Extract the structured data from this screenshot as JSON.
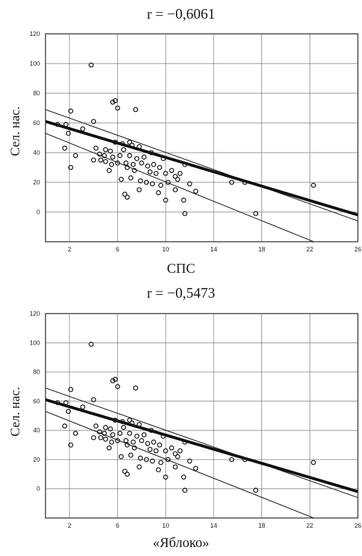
{
  "charts_text": {
    "top_title": "r = −0,6061",
    "top_xlabel": "СПС",
    "bottom_title": "r = −0,5473",
    "bottom_caption": "«Яблоко»"
  },
  "chart_data": [
    {
      "type": "scatter",
      "title": "r = −0,6061",
      "xlabel": "СПС",
      "ylabel": "Сел. нас.",
      "xlim": [
        0,
        26
      ],
      "ylim": [
        -20,
        120
      ],
      "xticks": [
        "2",
        "6",
        "10",
        "14",
        "18",
        "22",
        "26"
      ],
      "yticks": [
        "120",
        "100",
        "80",
        "60",
        "40",
        "20",
        "0"
      ],
      "grid": true,
      "regression": {
        "intercept": 61,
        "slope": -2.42
      },
      "confidence_band": {
        "upper": [
          [
            0,
            69
          ],
          [
            26,
            -6
          ]
        ],
        "lower": [
          [
            0,
            53
          ],
          [
            26,
            -32
          ]
        ]
      },
      "points": [
        [
          3.8,
          99
        ],
        [
          5.8,
          75
        ],
        [
          5.6,
          74
        ],
        [
          6,
          70
        ],
        [
          7.5,
          69
        ],
        [
          2.1,
          68
        ],
        [
          4,
          61
        ],
        [
          1,
          59
        ],
        [
          1.7,
          59
        ],
        [
          3.1,
          56
        ],
        [
          1.9,
          53
        ],
        [
          5.8,
          47
        ],
        [
          6.4,
          46
        ],
        [
          7,
          47
        ],
        [
          7.2,
          45
        ],
        [
          1.6,
          43
        ],
        [
          4.2,
          43
        ],
        [
          5,
          42
        ],
        [
          5.4,
          41
        ],
        [
          6.5,
          42
        ],
        [
          7.8,
          44
        ],
        [
          8.8,
          40
        ],
        [
          4.5,
          39
        ],
        [
          4.9,
          38
        ],
        [
          5.6,
          37
        ],
        [
          6.2,
          38
        ],
        [
          7,
          38
        ],
        [
          7.6,
          36
        ],
        [
          8.2,
          37
        ],
        [
          9.8,
          36
        ],
        [
          2.5,
          38
        ],
        [
          5,
          34
        ],
        [
          5.5,
          32
        ],
        [
          6,
          33
        ],
        [
          6.7,
          33
        ],
        [
          7.3,
          32
        ],
        [
          8,
          33
        ],
        [
          8.5,
          31
        ],
        [
          9,
          32
        ],
        [
          9.5,
          30
        ],
        [
          10.5,
          28
        ],
        [
          11.6,
          32
        ],
        [
          4,
          35
        ],
        [
          4.6,
          35
        ],
        [
          5.3,
          28
        ],
        [
          6.8,
          30
        ],
        [
          7.4,
          28
        ],
        [
          8.7,
          27
        ],
        [
          9.2,
          26
        ],
        [
          10,
          26
        ],
        [
          10.8,
          24
        ],
        [
          11.2,
          26
        ],
        [
          6.3,
          22
        ],
        [
          7.1,
          23
        ],
        [
          7.9,
          21
        ],
        [
          8.4,
          20
        ],
        [
          8.9,
          19
        ],
        [
          9.6,
          18
        ],
        [
          10.2,
          20
        ],
        [
          11,
          22
        ],
        [
          12,
          19
        ],
        [
          6.6,
          12
        ],
        [
          7.8,
          15
        ],
        [
          9.4,
          13
        ],
        [
          10.8,
          15
        ],
        [
          12.5,
          14
        ],
        [
          6.8,
          10
        ],
        [
          10,
          8
        ],
        [
          11.5,
          8
        ],
        [
          15.5,
          20
        ],
        [
          16.6,
          20
        ],
        [
          22.3,
          18
        ],
        [
          17.5,
          -1
        ],
        [
          11.6,
          -1
        ],
        [
          2.1,
          30
        ]
      ]
    },
    {
      "type": "scatter",
      "title": "r = −0,5473",
      "xlabel": "«Яблоко»",
      "ylabel": "Сел. нас.",
      "xlim": [
        0,
        26
      ],
      "ylim": [
        -20,
        120
      ],
      "xticks": [
        "2",
        "6",
        "10",
        "14",
        "18",
        "22",
        "26"
      ],
      "yticks": [
        "120",
        "100",
        "80",
        "60",
        "40",
        "20",
        "0"
      ],
      "grid": true,
      "regression": {
        "intercept": 61,
        "slope": -2.42
      },
      "confidence_band": {
        "upper": [
          [
            0,
            69
          ],
          [
            26,
            -6
          ]
        ],
        "lower": [
          [
            0,
            53
          ],
          [
            26,
            -32
          ]
        ]
      },
      "points": [
        [
          3.8,
          99
        ],
        [
          5.8,
          75
        ],
        [
          5.6,
          74
        ],
        [
          6,
          70
        ],
        [
          7.5,
          69
        ],
        [
          2.1,
          68
        ],
        [
          4,
          61
        ],
        [
          1,
          59
        ],
        [
          1.7,
          59
        ],
        [
          3.1,
          56
        ],
        [
          1.9,
          53
        ],
        [
          5.8,
          47
        ],
        [
          6.4,
          46
        ],
        [
          7,
          47
        ],
        [
          7.2,
          45
        ],
        [
          1.6,
          43
        ],
        [
          4.2,
          43
        ],
        [
          5,
          42
        ],
        [
          5.4,
          41
        ],
        [
          6.5,
          42
        ],
        [
          7.8,
          44
        ],
        [
          8.8,
          40
        ],
        [
          4.5,
          39
        ],
        [
          4.9,
          38
        ],
        [
          5.6,
          37
        ],
        [
          6.2,
          38
        ],
        [
          7,
          38
        ],
        [
          7.6,
          36
        ],
        [
          8.2,
          37
        ],
        [
          9.8,
          36
        ],
        [
          2.5,
          38
        ],
        [
          5,
          34
        ],
        [
          5.5,
          32
        ],
        [
          6,
          33
        ],
        [
          6.7,
          33
        ],
        [
          7.3,
          32
        ],
        [
          8,
          33
        ],
        [
          8.5,
          31
        ],
        [
          9,
          32
        ],
        [
          9.5,
          30
        ],
        [
          10.5,
          28
        ],
        [
          11.6,
          32
        ],
        [
          4,
          35
        ],
        [
          4.6,
          35
        ],
        [
          5.3,
          28
        ],
        [
          6.8,
          30
        ],
        [
          7.4,
          28
        ],
        [
          8.7,
          27
        ],
        [
          9.2,
          26
        ],
        [
          10,
          26
        ],
        [
          10.8,
          24
        ],
        [
          11.2,
          26
        ],
        [
          6.3,
          22
        ],
        [
          7.1,
          23
        ],
        [
          7.9,
          21
        ],
        [
          8.4,
          20
        ],
        [
          8.9,
          19
        ],
        [
          9.6,
          18
        ],
        [
          10.2,
          20
        ],
        [
          11,
          22
        ],
        [
          12,
          19
        ],
        [
          6.6,
          12
        ],
        [
          7.8,
          15
        ],
        [
          9.4,
          13
        ],
        [
          10.8,
          15
        ],
        [
          12.5,
          14
        ],
        [
          6.8,
          10
        ],
        [
          10,
          8
        ],
        [
          11.5,
          8
        ],
        [
          15.5,
          20
        ],
        [
          16.6,
          20
        ],
        [
          22.3,
          18
        ],
        [
          17.5,
          -1
        ],
        [
          11.6,
          -1
        ],
        [
          2.1,
          30
        ]
      ]
    }
  ]
}
